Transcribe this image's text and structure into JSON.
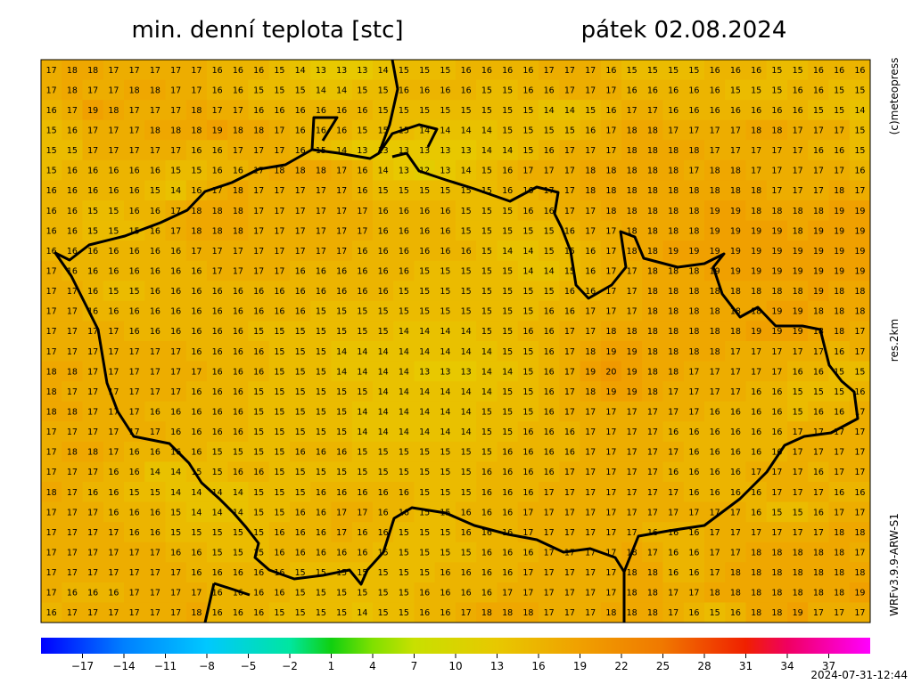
{
  "header": {
    "title": "min. denní teplota [stc]",
    "date": "pátek 02.08.2024"
  },
  "side": {
    "credit": "(c)meteopress",
    "resolution": "res.2km",
    "model": "WRFv3.9.9-ARW-S1"
  },
  "timestamp": "2024-07-31-12:44",
  "grid": {
    "rows": [
      [
        17,
        18,
        18,
        17,
        17,
        17,
        17,
        17,
        16,
        16,
        16,
        15,
        14,
        13,
        13,
        13,
        14,
        15,
        15,
        15,
        16,
        16,
        16,
        16,
        17,
        17,
        17,
        16,
        15,
        15,
        15,
        15,
        16,
        16,
        16,
        15,
        15,
        16,
        16,
        16
      ],
      [
        17,
        18,
        17,
        17,
        18,
        18,
        17,
        17,
        16,
        16,
        15,
        15,
        15,
        14,
        14,
        15,
        15,
        16,
        16,
        16,
        16,
        15,
        15,
        16,
        16,
        17,
        17,
        17,
        16,
        16,
        16,
        16,
        16,
        15,
        15,
        15,
        16,
        16,
        15,
        15
      ],
      [
        16,
        17,
        19,
        18,
        17,
        17,
        17,
        18,
        17,
        17,
        16,
        16,
        16,
        16,
        16,
        16,
        15,
        15,
        15,
        15,
        15,
        15,
        15,
        15,
        14,
        14,
        15,
        16,
        17,
        17,
        16,
        16,
        16,
        16,
        16,
        16,
        16,
        15,
        15,
        14
      ],
      [
        15,
        16,
        17,
        17,
        17,
        18,
        18,
        18,
        19,
        18,
        18,
        17,
        16,
        16,
        16,
        15,
        15,
        15,
        14,
        14,
        14,
        14,
        15,
        15,
        15,
        15,
        16,
        17,
        18,
        18,
        17,
        17,
        17,
        17,
        18,
        18,
        17,
        17,
        17,
        15
      ],
      [
        15,
        15,
        17,
        17,
        17,
        17,
        17,
        16,
        16,
        17,
        17,
        17,
        16,
        15,
        14,
        13,
        13,
        13,
        13,
        13,
        13,
        14,
        14,
        15,
        16,
        17,
        17,
        17,
        18,
        18,
        18,
        18,
        17,
        17,
        17,
        17,
        17,
        16,
        16,
        15
      ],
      [
        15,
        16,
        16,
        16,
        16,
        16,
        15,
        15,
        16,
        16,
        17,
        18,
        18,
        18,
        17,
        16,
        14,
        13,
        12,
        13,
        14,
        15,
        16,
        17,
        17,
        17,
        18,
        18,
        18,
        18,
        18,
        17,
        18,
        18,
        17,
        17,
        17,
        17,
        17,
        16
      ],
      [
        16,
        16,
        16,
        16,
        16,
        15,
        14,
        16,
        17,
        18,
        17,
        17,
        17,
        17,
        17,
        16,
        15,
        15,
        15,
        15,
        15,
        15,
        16,
        16,
        17,
        17,
        18,
        18,
        18,
        18,
        18,
        18,
        18,
        18,
        18,
        17,
        17,
        17,
        18,
        17
      ],
      [
        16,
        16,
        15,
        15,
        16,
        16,
        17,
        18,
        18,
        18,
        17,
        17,
        17,
        17,
        17,
        17,
        16,
        16,
        16,
        16,
        15,
        15,
        15,
        16,
        16,
        17,
        17,
        18,
        18,
        18,
        18,
        18,
        19,
        19,
        18,
        18,
        18,
        18,
        19,
        19
      ],
      [
        16,
        16,
        15,
        15,
        15,
        16,
        17,
        18,
        18,
        18,
        17,
        17,
        17,
        17,
        17,
        17,
        16,
        16,
        16,
        16,
        15,
        15,
        15,
        15,
        15,
        16,
        17,
        17,
        18,
        18,
        18,
        18,
        19,
        19,
        19,
        19,
        18,
        19,
        19,
        19
      ],
      [
        16,
        16,
        16,
        16,
        16,
        16,
        16,
        17,
        17,
        17,
        17,
        17,
        17,
        17,
        17,
        16,
        16,
        16,
        16,
        16,
        16,
        15,
        14,
        14,
        15,
        15,
        16,
        17,
        18,
        18,
        19,
        19,
        19,
        19,
        19,
        19,
        19,
        19,
        19,
        19
      ],
      [
        17,
        16,
        16,
        16,
        16,
        16,
        16,
        16,
        17,
        17,
        17,
        17,
        16,
        16,
        16,
        16,
        16,
        16,
        15,
        15,
        15,
        15,
        15,
        14,
        14,
        15,
        16,
        17,
        17,
        18,
        18,
        18,
        19,
        19,
        19,
        19,
        19,
        19,
        19,
        19
      ],
      [
        17,
        17,
        16,
        15,
        15,
        16,
        16,
        16,
        16,
        16,
        16,
        16,
        16,
        16,
        16,
        16,
        16,
        15,
        15,
        15,
        15,
        15,
        15,
        15,
        15,
        16,
        16,
        17,
        17,
        18,
        18,
        18,
        18,
        18,
        18,
        18,
        18,
        19,
        18,
        18
      ],
      [
        17,
        17,
        16,
        16,
        16,
        16,
        16,
        16,
        16,
        16,
        16,
        16,
        16,
        15,
        15,
        15,
        15,
        15,
        15,
        15,
        15,
        15,
        15,
        15,
        16,
        16,
        17,
        17,
        17,
        18,
        18,
        18,
        18,
        18,
        18,
        19,
        19,
        18,
        18,
        18
      ],
      [
        17,
        17,
        17,
        17,
        16,
        16,
        16,
        16,
        16,
        16,
        15,
        15,
        15,
        15,
        15,
        15,
        15,
        14,
        14,
        14,
        14,
        15,
        15,
        16,
        16,
        17,
        17,
        18,
        18,
        18,
        18,
        18,
        18,
        18,
        19,
        19,
        19,
        18,
        18,
        17
      ],
      [
        17,
        17,
        17,
        17,
        17,
        17,
        17,
        16,
        16,
        16,
        16,
        15,
        15,
        15,
        14,
        14,
        14,
        14,
        14,
        14,
        14,
        14,
        15,
        15,
        16,
        17,
        18,
        19,
        19,
        18,
        18,
        18,
        18,
        17,
        17,
        17,
        17,
        17,
        16,
        17
      ],
      [
        18,
        18,
        17,
        17,
        17,
        17,
        17,
        17,
        16,
        16,
        16,
        15,
        15,
        15,
        14,
        14,
        14,
        14,
        13,
        13,
        13,
        14,
        14,
        15,
        16,
        17,
        19,
        20,
        19,
        18,
        18,
        17,
        17,
        17,
        17,
        17,
        16,
        16,
        15,
        15
      ],
      [
        18,
        17,
        17,
        17,
        17,
        17,
        17,
        16,
        16,
        16,
        15,
        15,
        15,
        15,
        15,
        15,
        14,
        14,
        14,
        14,
        14,
        14,
        15,
        15,
        16,
        17,
        18,
        19,
        19,
        18,
        17,
        17,
        17,
        17,
        16,
        16,
        15,
        15,
        15,
        16
      ],
      [
        18,
        18,
        17,
        17,
        17,
        16,
        16,
        16,
        16,
        16,
        15,
        15,
        15,
        15,
        15,
        14,
        14,
        14,
        14,
        14,
        14,
        15,
        15,
        15,
        16,
        17,
        17,
        17,
        17,
        17,
        17,
        17,
        16,
        16,
        16,
        16,
        15,
        16,
        16,
        17
      ],
      [
        17,
        17,
        17,
        17,
        17,
        17,
        16,
        16,
        16,
        16,
        15,
        15,
        15,
        15,
        15,
        14,
        14,
        14,
        14,
        14,
        14,
        15,
        15,
        16,
        16,
        16,
        17,
        17,
        17,
        17,
        16,
        16,
        16,
        16,
        16,
        16,
        17,
        17,
        17,
        17
      ],
      [
        17,
        18,
        18,
        17,
        16,
        16,
        16,
        16,
        15,
        15,
        15,
        15,
        16,
        16,
        16,
        15,
        15,
        15,
        15,
        15,
        15,
        15,
        16,
        16,
        16,
        16,
        17,
        17,
        17,
        17,
        17,
        16,
        16,
        16,
        16,
        16,
        17,
        17,
        17,
        17
      ],
      [
        17,
        17,
        17,
        16,
        16,
        14,
        14,
        15,
        15,
        16,
        16,
        15,
        15,
        15,
        15,
        15,
        15,
        15,
        15,
        15,
        15,
        16,
        16,
        16,
        16,
        17,
        17,
        17,
        17,
        17,
        16,
        16,
        16,
        16,
        17,
        17,
        17,
        16,
        17,
        17
      ],
      [
        18,
        17,
        16,
        16,
        15,
        15,
        14,
        14,
        14,
        14,
        15,
        15,
        15,
        16,
        16,
        16,
        16,
        16,
        15,
        15,
        15,
        16,
        16,
        16,
        17,
        17,
        17,
        17,
        17,
        17,
        17,
        16,
        16,
        16,
        16,
        17,
        17,
        17,
        16,
        16
      ],
      [
        17,
        17,
        17,
        16,
        16,
        16,
        15,
        14,
        14,
        14,
        15,
        15,
        16,
        16,
        17,
        17,
        16,
        16,
        15,
        15,
        16,
        16,
        16,
        17,
        17,
        17,
        17,
        17,
        17,
        17,
        17,
        17,
        17,
        17,
        16,
        15,
        15,
        16,
        17,
        17
      ],
      [
        17,
        17,
        17,
        17,
        16,
        16,
        15,
        15,
        15,
        15,
        15,
        16,
        16,
        16,
        17,
        16,
        16,
        15,
        15,
        15,
        16,
        16,
        16,
        17,
        17,
        17,
        17,
        17,
        17,
        16,
        16,
        16,
        17,
        17,
        17,
        17,
        17,
        17,
        18,
        18
      ],
      [
        17,
        17,
        17,
        17,
        17,
        17,
        16,
        16,
        15,
        15,
        15,
        16,
        16,
        16,
        16,
        16,
        15,
        15,
        15,
        15,
        15,
        16,
        16,
        16,
        17,
        17,
        17,
        17,
        18,
        17,
        16,
        16,
        17,
        17,
        18,
        18,
        18,
        18,
        18,
        17
      ],
      [
        17,
        17,
        17,
        17,
        17,
        17,
        17,
        16,
        16,
        16,
        16,
        16,
        15,
        15,
        15,
        15,
        15,
        15,
        15,
        16,
        16,
        16,
        16,
        17,
        17,
        17,
        17,
        17,
        18,
        18,
        16,
        16,
        17,
        18,
        18,
        18,
        18,
        18,
        18,
        18
      ],
      [
        17,
        16,
        16,
        16,
        17,
        17,
        17,
        17,
        16,
        16,
        16,
        16,
        15,
        15,
        15,
        15,
        15,
        15,
        16,
        16,
        16,
        16,
        17,
        17,
        17,
        17,
        17,
        17,
        18,
        18,
        17,
        17,
        18,
        18,
        18,
        18,
        18,
        18,
        18,
        19
      ],
      [
        16,
        17,
        17,
        17,
        17,
        17,
        17,
        18,
        16,
        16,
        16,
        15,
        15,
        15,
        15,
        14,
        15,
        15,
        16,
        16,
        17,
        18,
        18,
        18,
        17,
        17,
        17,
        18,
        18,
        18,
        17,
        16,
        15,
        16,
        18,
        18,
        19,
        17,
        17,
        17
      ]
    ]
  },
  "colorbar": {
    "xlim": [
      -20,
      40
    ],
    "ticks": [
      {
        "value": -17,
        "label": "−17"
      },
      {
        "value": -14,
        "label": "−14"
      },
      {
        "value": -11,
        "label": "−11"
      },
      {
        "value": -8,
        "label": "−8"
      },
      {
        "value": -5,
        "label": "−5"
      },
      {
        "value": -2,
        "label": "−2"
      },
      1,
      4,
      7,
      10,
      13,
      16,
      19,
      22,
      25,
      28,
      31,
      34,
      37
    ]
  }
}
